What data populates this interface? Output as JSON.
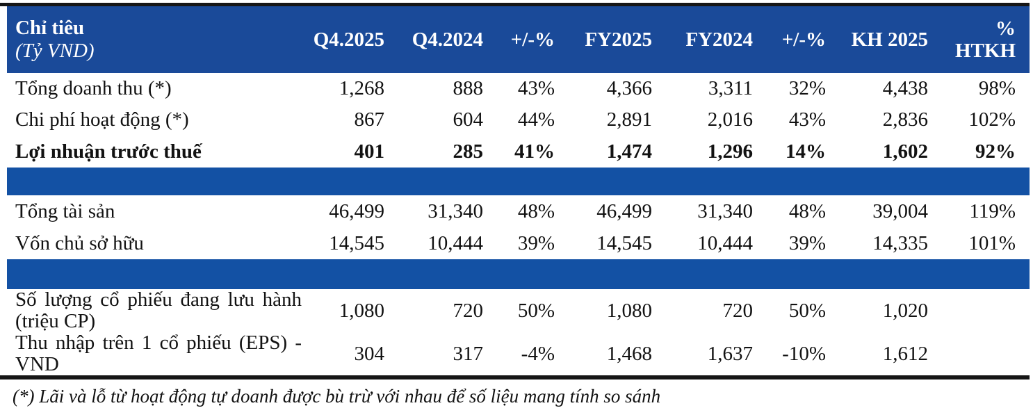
{
  "colors": {
    "header_blue": "#1A4A99",
    "band_blue": "#1351A4",
    "rule_black": "#161616",
    "header_text": "#ffffff",
    "body_text": "#121212"
  },
  "table": {
    "header": {
      "col1_title": "Chỉ tiêu",
      "col1_subtitle": "(Tỷ VND)",
      "columns": [
        "Q4.2025",
        "Q4.2024",
        "+/-%",
        "FY2025",
        "FY2024",
        "+/-%",
        "KH 2025",
        "%\nHTKH"
      ]
    },
    "rows": [
      {
        "label": "Tổng doanh thu (*)",
        "values": [
          "1,268",
          "888",
          "43%",
          "4,366",
          "3,311",
          "32%",
          "4,438",
          "98%"
        ]
      },
      {
        "label": "Chi phí hoạt động (*)",
        "values": [
          "867",
          "604",
          "44%",
          "2,891",
          "2,016",
          "43%",
          "2,836",
          "102%"
        ]
      },
      {
        "label": "Lợi nhuận trước thuế",
        "values": [
          "401",
          "285",
          "41%",
          "1,474",
          "1,296",
          "14%",
          "1,602",
          "92%"
        ]
      },
      {
        "label": "Tổng tài sản",
        "values": [
          "46,499",
          "31,340",
          "48%",
          "46,499",
          "31,340",
          "48%",
          "39,004",
          "119%"
        ]
      },
      {
        "label": "Vốn chủ sở hữu",
        "values": [
          "14,545",
          "10,444",
          "39%",
          "14,545",
          "10,444",
          "39%",
          "14,335",
          "101%"
        ]
      },
      {
        "label_line1": "Số lượng cổ phiếu đang lưu hành",
        "label_line2": "(triệu CP)",
        "values": [
          "1,080",
          "720",
          "50%",
          "1,080",
          "720",
          "50%",
          "1,020",
          ""
        ]
      },
      {
        "label_line1": "Thu nhập trên 1 cổ phiếu (EPS) -",
        "label_line2": "VND",
        "values": [
          "304",
          "317",
          "-4%",
          "1,468",
          "1,637",
          "-10%",
          "1,612",
          ""
        ]
      }
    ]
  },
  "footnote": "(*) Lãi và lỗ từ hoạt động tự doanh được bù trừ với nhau để số liệu mang tính so sánh"
}
